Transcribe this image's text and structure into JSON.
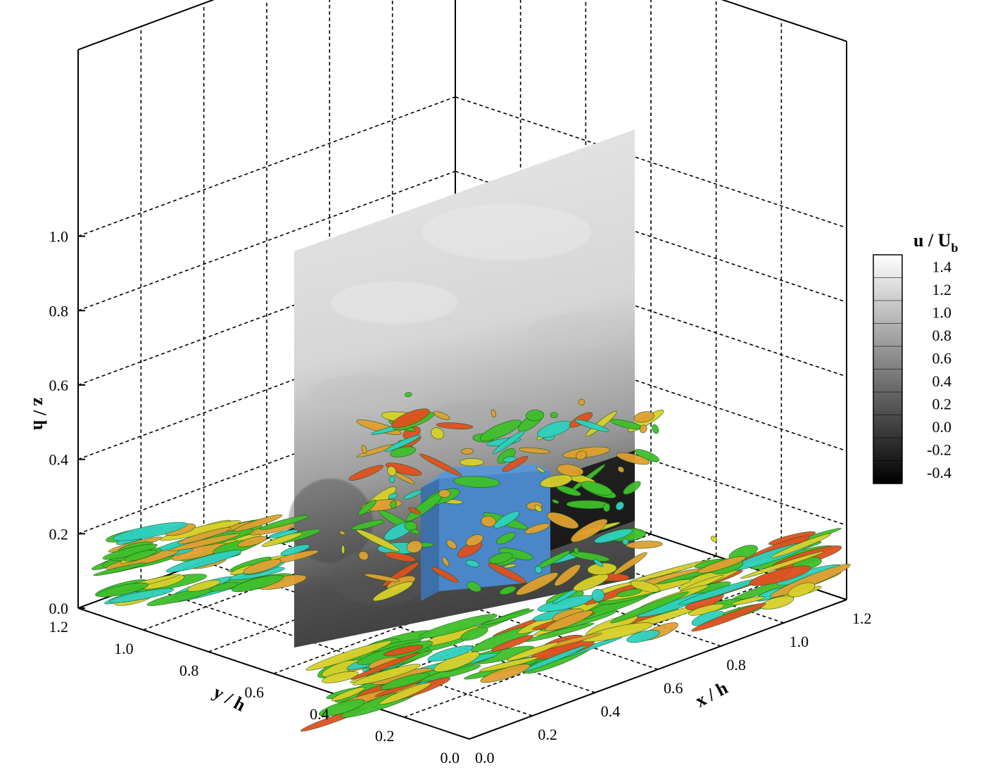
{
  "chart_data": {
    "type": "3d-isosurface",
    "axes": {
      "x": {
        "label": "x / h",
        "ticks": [
          "0.0",
          "0.2",
          "0.4",
          "0.6",
          "0.8",
          "1.0",
          "1.2"
        ],
        "range": [
          0.0,
          1.2
        ]
      },
      "y": {
        "label": "y / h",
        "ticks": [
          "0.0",
          "0.2",
          "0.4",
          "0.6",
          "0.8",
          "1.0",
          "1.2"
        ],
        "range": [
          0.0,
          1.2
        ]
      },
      "z": {
        "label": "z / h",
        "ticks": [
          "0.0",
          "0.2",
          "0.4",
          "0.6",
          "0.8",
          "1.0"
        ],
        "range": [
          0.0,
          1.05
        ]
      }
    },
    "grid": true,
    "colorbar": {
      "title": "u / U",
      "subscript": "b",
      "ticks": [
        "1.4",
        "1.2",
        "1.0",
        "0.8",
        "0.6",
        "0.4",
        "0.2",
        "0.0",
        "-0.2",
        "-0.4"
      ],
      "range": [
        -0.5,
        1.5
      ],
      "colormap": "grayscale",
      "placement": "right"
    },
    "colors": {
      "obstacle": "#4a86c8",
      "iso_green": "#3fbf2a",
      "iso_yellow": "#d8cf2a",
      "iso_orange": "#e0a030",
      "iso_cyan": "#2ed0c0",
      "iso_red": "#e05020"
    }
  }
}
